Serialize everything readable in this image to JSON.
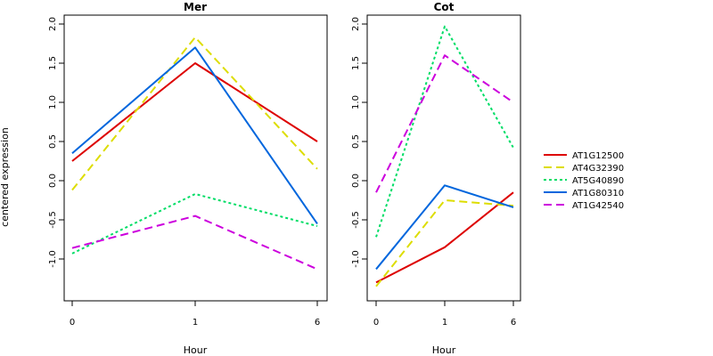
{
  "chart_data": {
    "type": "line",
    "ylabel": "centered expression",
    "categories": [
      "0",
      "1",
      "6"
    ],
    "ylim": [
      -1.5,
      2.1
    ],
    "yticks": [
      "-1.0",
      "-0.5",
      "0.0",
      "0.5",
      "1.0",
      "1.5",
      "2.0"
    ],
    "ytick_values": [
      -1.0,
      -0.5,
      0.0,
      0.5,
      1.0,
      1.5,
      2.0
    ],
    "legend_position": "right",
    "legend": [
      {
        "name": "AT1G12500",
        "color": "#dd0000",
        "dash": "solid"
      },
      {
        "name": "AT4G32390",
        "color": "#dddd00",
        "dash": "long-dash"
      },
      {
        "name": "AT5G40890",
        "color": "#00dd66",
        "dash": "dotted"
      },
      {
        "name": "AT1G80310",
        "color": "#0066dd",
        "dash": "solid"
      },
      {
        "name": "AT1G42540",
        "color": "#cc00dd",
        "dash": "long-dash"
      }
    ],
    "panels": [
      {
        "title": "Mer",
        "xlabel": "Hour",
        "series": [
          {
            "name": "AT1G12500",
            "values": [
              0.25,
              1.5,
              0.5
            ]
          },
          {
            "name": "AT4G32390",
            "values": [
              -0.12,
              1.83,
              0.15
            ]
          },
          {
            "name": "AT5G40890",
            "values": [
              -0.93,
              -0.17,
              -0.58
            ]
          },
          {
            "name": "AT1G80310",
            "values": [
              0.35,
              1.7,
              -0.55
            ]
          },
          {
            "name": "AT1G42540",
            "values": [
              -0.86,
              -0.45,
              -1.13
            ]
          }
        ]
      },
      {
        "title": "Cot",
        "xlabel": "Hour",
        "series": [
          {
            "name": "AT1G12500",
            "values": [
              -1.3,
              -0.85,
              -0.15
            ]
          },
          {
            "name": "AT4G32390",
            "values": [
              -1.35,
              -0.25,
              -0.32
            ]
          },
          {
            "name": "AT5G40890",
            "values": [
              -0.72,
              1.97,
              0.42
            ]
          },
          {
            "name": "AT1G80310",
            "values": [
              -1.13,
              -0.06,
              -0.34
            ]
          },
          {
            "name": "AT1G42540",
            "values": [
              -0.15,
              1.6,
              1.0
            ]
          }
        ]
      }
    ]
  }
}
